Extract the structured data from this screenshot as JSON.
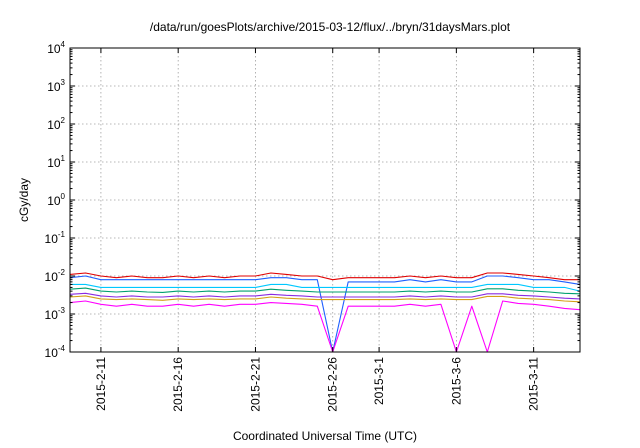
{
  "chart_data": {
    "type": "line",
    "title": "/data/run/goesPlots/archive/2015-03-12/flux/../bryn/31daysMars.plot",
    "xlabel": "Coordinated Universal Time (UTC)",
    "ylabel": "cGy/day",
    "y_scale": "log",
    "ylim": [
      0.0001,
      10000
    ],
    "xlim": [
      "2015-02-09",
      "2015-03-14"
    ],
    "grid": true,
    "y_ticks": [
      {
        "base": "10",
        "exp": "-4",
        "value": 0.0001
      },
      {
        "base": "10",
        "exp": "-3",
        "value": 0.001
      },
      {
        "base": "10",
        "exp": "-2",
        "value": 0.01
      },
      {
        "base": "10",
        "exp": "-1",
        "value": 0.1
      },
      {
        "base": "10",
        "exp": "0",
        "value": 1
      },
      {
        "base": "10",
        "exp": "1",
        "value": 10
      },
      {
        "base": "10",
        "exp": "2",
        "value": 100
      },
      {
        "base": "10",
        "exp": "3",
        "value": 1000
      },
      {
        "base": "10",
        "exp": "4",
        "value": 10000
      }
    ],
    "x_ticks": [
      {
        "label": "2015-2-11",
        "date": "2015-02-11"
      },
      {
        "label": "2015-2-16",
        "date": "2015-02-16"
      },
      {
        "label": "2015-2-21",
        "date": "2015-02-21"
      },
      {
        "label": "2015-2-26",
        "date": "2015-02-26"
      },
      {
        "label": "2015-3-1",
        "date": "2015-03-01"
      },
      {
        "label": "2015-3-6",
        "date": "2015-03-06"
      },
      {
        "label": "2015-3-11",
        "date": "2015-03-11"
      }
    ],
    "x": [
      "2015-02-09",
      "2015-02-10",
      "2015-02-11",
      "2015-02-12",
      "2015-02-13",
      "2015-02-14",
      "2015-02-15",
      "2015-02-16",
      "2015-02-17",
      "2015-02-18",
      "2015-02-19",
      "2015-02-20",
      "2015-02-21",
      "2015-02-22",
      "2015-02-23",
      "2015-02-24",
      "2015-02-25",
      "2015-02-26",
      "2015-02-27",
      "2015-02-28",
      "2015-03-01",
      "2015-03-02",
      "2015-03-03",
      "2015-03-04",
      "2015-03-05",
      "2015-03-06",
      "2015-03-07",
      "2015-03-08",
      "2015-03-09",
      "2015-03-10",
      "2015-03-11",
      "2015-03-12",
      "2015-03-13",
      "2015-03-14"
    ],
    "series": [
      {
        "color": "#e00000",
        "values": [
          0.011,
          0.012,
          0.01,
          0.009,
          0.01,
          0.009,
          0.009,
          0.01,
          0.009,
          0.01,
          0.009,
          0.01,
          0.01,
          0.012,
          0.011,
          0.01,
          0.01,
          0.008,
          0.009,
          0.009,
          0.009,
          0.009,
          0.01,
          0.009,
          0.01,
          0.009,
          0.009,
          0.012,
          0.012,
          0.011,
          0.01,
          0.009,
          0.008,
          0.008
        ]
      },
      {
        "color": "#1f5fff",
        "values": [
          0.009,
          0.01,
          0.008,
          0.008,
          0.008,
          0.008,
          0.008,
          0.008,
          0.008,
          0.008,
          0.008,
          0.008,
          0.008,
          0.009,
          0.009,
          0.008,
          0.008,
          0.0001,
          0.007,
          0.007,
          0.007,
          0.007,
          0.008,
          0.007,
          0.008,
          0.007,
          0.007,
          0.01,
          0.01,
          0.009,
          0.008,
          0.008,
          0.007,
          0.006
        ]
      },
      {
        "color": "#00c8ff",
        "values": [
          0.006,
          0.006,
          0.005,
          0.005,
          0.005,
          0.005,
          0.005,
          0.005,
          0.005,
          0.005,
          0.005,
          0.005,
          0.005,
          0.006,
          0.006,
          0.005,
          0.005,
          0.005,
          0.005,
          0.005,
          0.005,
          0.005,
          0.005,
          0.005,
          0.005,
          0.005,
          0.005,
          0.006,
          0.006,
          0.006,
          0.005,
          0.005,
          0.005,
          0.004
        ]
      },
      {
        "color": "#00a06e",
        "values": [
          0.0045,
          0.0048,
          0.004,
          0.0038,
          0.004,
          0.0038,
          0.0037,
          0.004,
          0.0038,
          0.004,
          0.0038,
          0.004,
          0.004,
          0.0045,
          0.0042,
          0.004,
          0.0038,
          0.0038,
          0.0038,
          0.0038,
          0.0038,
          0.0038,
          0.004,
          0.0038,
          0.004,
          0.0038,
          0.0038,
          0.0046,
          0.0046,
          0.0042,
          0.004,
          0.0038,
          0.0035,
          0.0034
        ]
      },
      {
        "color": "#8a2be2",
        "values": [
          0.0033,
          0.0035,
          0.003,
          0.0028,
          0.003,
          0.0028,
          0.0028,
          0.003,
          0.0028,
          0.003,
          0.0028,
          0.003,
          0.003,
          0.0033,
          0.0031,
          0.003,
          0.0028,
          0.0028,
          0.0028,
          0.0028,
          0.0028,
          0.0028,
          0.003,
          0.0028,
          0.003,
          0.0028,
          0.0028,
          0.0034,
          0.0034,
          0.0031,
          0.003,
          0.0028,
          0.0026,
          0.0025
        ]
      },
      {
        "color": "#d4a017",
        "values": [
          0.0028,
          0.003,
          0.0025,
          0.0024,
          0.0025,
          0.0024,
          0.0023,
          0.0025,
          0.0024,
          0.0025,
          0.0024,
          0.0025,
          0.0025,
          0.0028,
          0.0026,
          0.0025,
          0.0024,
          0.0024,
          0.0024,
          0.0024,
          0.0024,
          0.0024,
          0.0025,
          0.0024,
          0.0025,
          0.0024,
          0.0024,
          0.0029,
          0.0029,
          0.0026,
          0.0025,
          0.0024,
          0.0022,
          0.0021
        ]
      },
      {
        "color": "#ff00ff",
        "values": [
          0.002,
          0.0022,
          0.0018,
          0.0016,
          0.0018,
          0.0016,
          0.0016,
          0.0018,
          0.0016,
          0.0018,
          0.0016,
          0.0018,
          0.0018,
          0.002,
          0.0019,
          0.0018,
          0.0016,
          0.0001,
          0.0016,
          0.0016,
          0.0016,
          0.0016,
          0.0018,
          0.0016,
          0.0018,
          0.0001,
          0.0016,
          0.0001,
          0.0022,
          0.0019,
          0.0018,
          0.0016,
          0.0014,
          0.0013
        ]
      }
    ]
  }
}
